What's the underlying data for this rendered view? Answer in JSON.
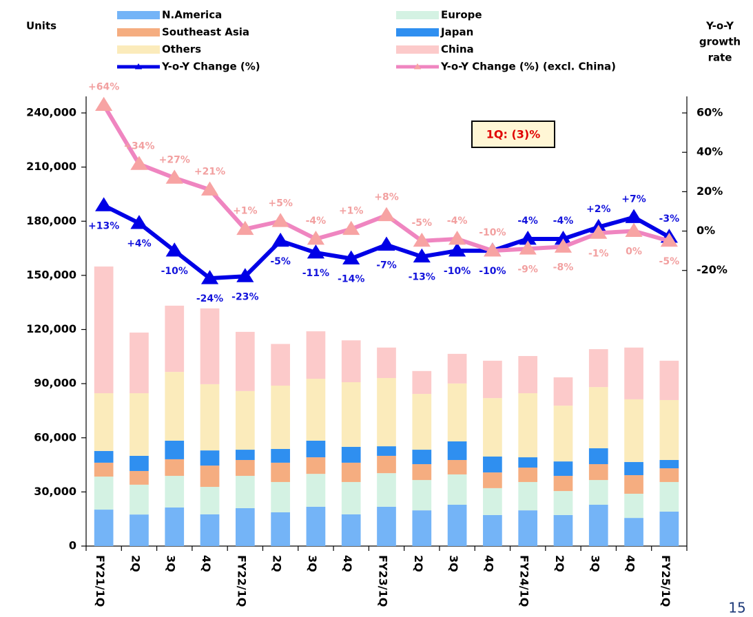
{
  "chart_data": {
    "type": "bar",
    "ylabel": "Units",
    "y2label": [
      "Y-o-Y",
      "growth",
      "rate"
    ],
    "annotation": "1Q: (3)%",
    "categories": [
      "FY21/1Q",
      "2Q",
      "3Q",
      "4Q",
      "FY22/1Q",
      "2Q",
      "3Q",
      "4Q",
      "FY23/1Q",
      "2Q",
      "3Q",
      "4Q",
      "FY24/1Q",
      "2Q",
      "3Q",
      "4Q",
      "FY25/1Q"
    ],
    "series": [
      {
        "name": "N.America",
        "color": "#74b4f7",
        "values": [
          20200,
          17500,
          21400,
          17600,
          21000,
          18700,
          21800,
          17600,
          21800,
          19800,
          22900,
          17200,
          19800,
          17200,
          22900,
          15600,
          19100
        ]
      },
      {
        "name": "Europe",
        "color": "#d4f2e3",
        "values": [
          18300,
          16500,
          17500,
          15200,
          17900,
          16800,
          18200,
          17900,
          18600,
          16800,
          16800,
          14900,
          15700,
          13300,
          13700,
          13400,
          16400
        ]
      },
      {
        "name": "Southeast Asia",
        "color": "#f5ad80",
        "values": [
          7700,
          7600,
          9200,
          11800,
          8800,
          10700,
          9200,
          10700,
          9600,
          8800,
          8000,
          8700,
          8000,
          8400,
          8800,
          10300,
          7600
        ]
      },
      {
        "name": "Japan",
        "color": "#2f8ff0",
        "values": [
          6500,
          8400,
          10300,
          8400,
          5700,
          7600,
          9200,
          8800,
          5300,
          8000,
          10300,
          8800,
          5700,
          8000,
          8800,
          7300,
          4600
        ]
      },
      {
        "name": "Others",
        "color": "#fbebbb",
        "values": [
          32000,
          34700,
          38100,
          36700,
          32500,
          35100,
          34300,
          35800,
          37800,
          30900,
          32100,
          32400,
          35500,
          30900,
          33900,
          34700,
          33200
        ]
      },
      {
        "name": "China",
        "color": "#fccaca",
        "values": [
          70200,
          33600,
          36700,
          42000,
          32800,
          23100,
          26300,
          23200,
          16900,
          12700,
          16400,
          20700,
          20600,
          15700,
          21000,
          28700,
          21800
        ]
      },
      {
        "name": "Y-o-Y Change (%)",
        "type": "line",
        "axis": "y2",
        "color": "#0000e6",
        "label_color": "#1414dc",
        "values": [
          13,
          4,
          -10,
          -24,
          -23,
          -5,
          -11,
          -14,
          -7,
          -13,
          -10,
          -10,
          -4,
          -4,
          2,
          7,
          -3
        ],
        "value_labels": [
          "+13%",
          "+4%",
          "-10%",
          "-24%",
          "-23%",
          "-5%",
          "-11%",
          "-14%",
          "-7%",
          "-13%",
          "-10%",
          "-10%",
          "-4%",
          "-4%",
          "+2%",
          "+7%",
          "-3%"
        ]
      },
      {
        "name": "Y-o-Y Change (%) (excl. China)",
        "type": "line",
        "axis": "y2",
        "color": "#ef85c0",
        "marker_color": "#f7a3a3",
        "label_color": "#f2a0a0",
        "values": [
          64,
          34,
          27,
          21,
          1,
          5,
          -4,
          1,
          8,
          -5,
          -4,
          -10,
          -9,
          -8,
          -1,
          0,
          -5
        ],
        "value_labels": [
          "+64%",
          "+34%",
          "+27%",
          "+21%",
          "+1%",
          "+5%",
          "-4%",
          "+1%",
          "+8%",
          "-5%",
          "-4%",
          "-10%",
          "-9%",
          "-8%",
          "-1%",
          "0%",
          "-5%"
        ]
      }
    ],
    "ylim": [
      0,
      240000
    ],
    "yticks": [
      0,
      {
        "value": 30000,
        "label": "30,000"
      },
      {
        "value": 60000,
        "label": "60,000"
      },
      {
        "value": 90000,
        "label": "90,000"
      },
      {
        "value": 120000,
        "label": "120,000"
      },
      {
        "value": 150000,
        "label": "150,000"
      },
      {
        "value": 180000,
        "label": "180,000"
      },
      {
        "value": 210000,
        "label": "210,000"
      },
      {
        "value": 240000,
        "label": "240,000"
      }
    ],
    "y2lim": [
      -160,
      60
    ],
    "y2ticks": [
      {
        "value": -20,
        "label": "-20%"
      },
      {
        "value": 0,
        "label": "0%"
      },
      {
        "value": 20,
        "label": "20%"
      },
      {
        "value": 40,
        "label": "40%"
      },
      {
        "value": 60,
        "label": "60%"
      }
    ],
    "grid": false
  },
  "page": "15"
}
